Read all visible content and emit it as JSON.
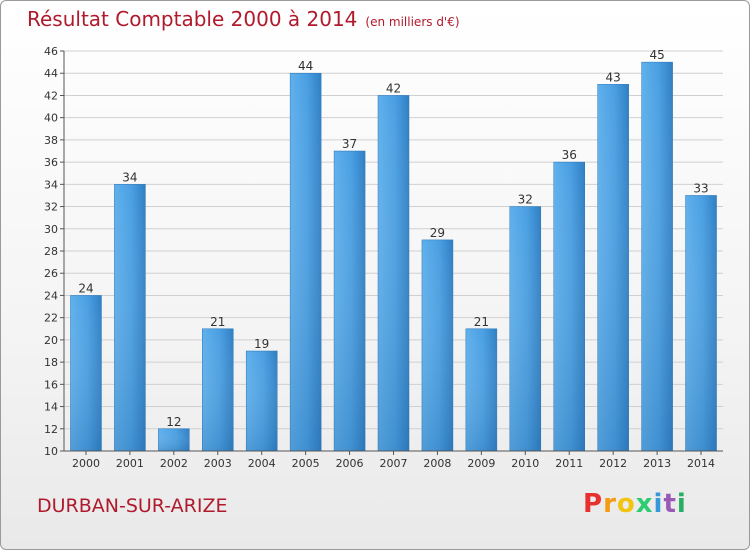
{
  "header": {
    "title": "Résultat Comptable 2000 à 2014",
    "subtitle": "(en milliers d'€)"
  },
  "footer": {
    "commune": "DURBAN-SUR-ARIZE",
    "logo_letters": [
      "P",
      "r",
      "o",
      "x",
      "i",
      "t",
      "i"
    ],
    "logo_colors": [
      "#e8312f",
      "#f39c12",
      "#f1c40f",
      "#2ecc71",
      "#3498db",
      "#9b59b6",
      "#27ae60"
    ]
  },
  "colors": {
    "bar": "#3a8fd6",
    "bar_light": "#5fb0ec",
    "title": "#b01a2c",
    "grid": "#d0d0d0"
  },
  "chart_data": {
    "type": "bar",
    "categories": [
      "2000",
      "2001",
      "2002",
      "2003",
      "2004",
      "2005",
      "2006",
      "2007",
      "2008",
      "2009",
      "2010",
      "2011",
      "2012",
      "2013",
      "2014"
    ],
    "values": [
      24,
      34,
      12,
      21,
      19,
      44,
      37,
      42,
      29,
      21,
      32,
      36,
      43,
      45,
      33
    ],
    "title": "Résultat Comptable 2000 à 2014",
    "xlabel": "",
    "ylabel": "",
    "ylim": [
      10,
      46
    ],
    "yticks": [
      10,
      12,
      14,
      16,
      18,
      20,
      22,
      24,
      26,
      28,
      30,
      32,
      34,
      36,
      38,
      40,
      42,
      44,
      46
    ],
    "grid": true
  }
}
